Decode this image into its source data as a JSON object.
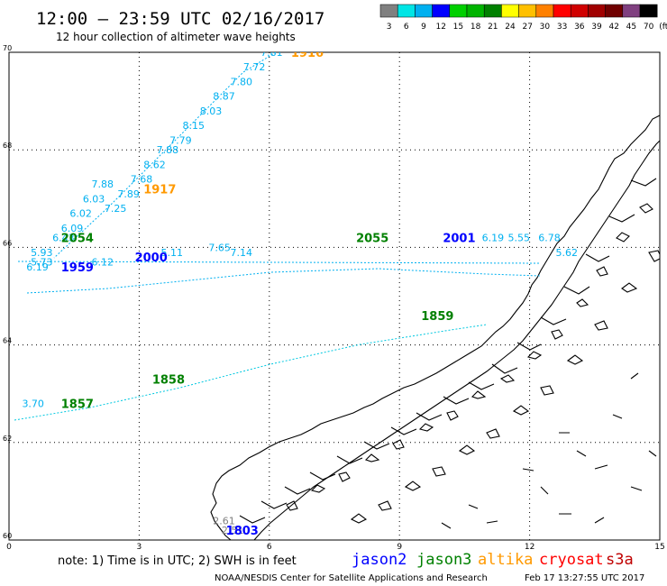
{
  "header": {
    "title": "12:00 – 23:59 UTC 02/16/2017",
    "subtitle": "12 hour collection of altimeter wave heights"
  },
  "legend": {
    "unit": "(ft)",
    "bins": [
      {
        "label": "3",
        "color": "#808080"
      },
      {
        "label": "6",
        "color": "#00e5e5"
      },
      {
        "label": "9",
        "color": "#00b0f0"
      },
      {
        "label": "12",
        "color": "#0000ff"
      },
      {
        "label": "15",
        "color": "#00d000"
      },
      {
        "label": "18",
        "color": "#00b400"
      },
      {
        "label": "21",
        "color": "#008000"
      },
      {
        "label": "24",
        "color": "#ffff00"
      },
      {
        "label": "27",
        "color": "#ffc000"
      },
      {
        "label": "30",
        "color": "#ff8000"
      },
      {
        "label": "33",
        "color": "#ff0000"
      },
      {
        "label": "36",
        "color": "#d00000"
      },
      {
        "label": "39",
        "color": "#a00000"
      },
      {
        "label": "42",
        "color": "#700000"
      },
      {
        "label": "45",
        "color": "#804080"
      },
      {
        "label": "70",
        "color": "#000000"
      }
    ]
  },
  "axes": {
    "lat_ticks": [
      "70",
      "68",
      "66",
      "64",
      "62",
      "60"
    ],
    "lon_ticks": [
      "0",
      "3",
      "6",
      "9",
      "12",
      "15"
    ]
  },
  "note": "note:  1) Time is in UTC;  2) SWH is in feet",
  "satellites": [
    {
      "name": "jason2",
      "color": "#0000ff"
    },
    {
      "name": "jason3",
      "color": "#008000"
    },
    {
      "name": "altika",
      "color": "#ff9900"
    },
    {
      "name": "cryosat",
      "color": "#ff0000"
    },
    {
      "name": "s3a",
      "color": "#c00000"
    }
  ],
  "credit": "NOAA/NESDIS Center for Satellite Applications and Research",
  "timestamp": "Feb 17  13:27:55 UTC 2017",
  "colors": {
    "swh_label": "#00b0f0",
    "swh_light": "#00e0e0",
    "grid": "#000000",
    "coast": "#000000"
  },
  "track_labels": [
    {
      "text": "1916",
      "sat": "altika",
      "lon": 6.5,
      "lat": 70.0
    },
    {
      "text": "1917",
      "sat": "altika",
      "lon": 3.1,
      "lat": 67.2
    },
    {
      "text": "2054",
      "sat": "jason3",
      "lon": 1.2,
      "lat": 66.2
    },
    {
      "text": "2055",
      "sat": "jason3",
      "lon": 8.0,
      "lat": 66.2
    },
    {
      "text": "2001",
      "sat": "jason2",
      "lon": 10.0,
      "lat": 66.2
    },
    {
      "text": "2000",
      "sat": "jason2",
      "lon": 2.9,
      "lat": 65.8
    },
    {
      "text": "1959",
      "sat": "jason2",
      "lon": 1.2,
      "lat": 65.6
    },
    {
      "text": "1859",
      "sat": "jason3",
      "lon": 9.5,
      "lat": 64.6
    },
    {
      "text": "1858",
      "sat": "jason3",
      "lon": 3.3,
      "lat": 63.3
    },
    {
      "text": "1857",
      "sat": "jason3",
      "lon": 1.2,
      "lat": 62.8
    },
    {
      "text": "1803",
      "sat": "jason2",
      "lon": 5.0,
      "lat": 60.2
    }
  ],
  "swh_values": [
    {
      "text": "7.81",
      "lon": 5.8,
      "lat": 70.0
    },
    {
      "text": "7.72",
      "lon": 5.4,
      "lat": 69.7
    },
    {
      "text": "7.80",
      "lon": 5.1,
      "lat": 69.4
    },
    {
      "text": "8.87",
      "lon": 4.7,
      "lat": 69.1
    },
    {
      "text": "8.03",
      "lon": 4.4,
      "lat": 68.8
    },
    {
      "text": "8.15",
      "lon": 4.0,
      "lat": 68.5
    },
    {
      "text": "7.79",
      "lon": 3.7,
      "lat": 68.2
    },
    {
      "text": "7.88",
      "lon": 3.4,
      "lat": 68.0
    },
    {
      "text": "8.62",
      "lon": 3.1,
      "lat": 67.7
    },
    {
      "text": "7.68",
      "lon": 2.8,
      "lat": 67.4
    },
    {
      "text": "7.89",
      "lon": 2.5,
      "lat": 67.1
    },
    {
      "text": "7.25",
      "lon": 2.2,
      "lat": 66.8
    },
    {
      "text": "7.88",
      "lon": 1.9,
      "lat": 67.3
    },
    {
      "text": "6.03",
      "lon": 1.7,
      "lat": 67.0
    },
    {
      "text": "6.02",
      "lon": 1.4,
      "lat": 66.7
    },
    {
      "text": "6.09",
      "lon": 1.2,
      "lat": 66.4
    },
    {
      "text": "6.43",
      "lon": 1.0,
      "lat": 66.2
    },
    {
      "text": "5.93",
      "lon": 0.5,
      "lat": 65.9
    },
    {
      "text": "5.73",
      "lon": 0.5,
      "lat": 65.7
    },
    {
      "text": "6.19",
      "lon": 0.4,
      "lat": 65.6
    },
    {
      "text": "6.12",
      "lon": 1.9,
      "lat": 65.7
    },
    {
      "text": "5.11",
      "lon": 3.5,
      "lat": 65.9
    },
    {
      "text": "7.65",
      "lon": 4.6,
      "lat": 66.0
    },
    {
      "text": "7.14",
      "lon": 5.1,
      "lat": 65.9
    },
    {
      "text": "6.19",
      "lon": 10.9,
      "lat": 66.2
    },
    {
      "text": "5.55",
      "lon": 11.5,
      "lat": 66.2
    },
    {
      "text": "6.78",
      "lon": 12.2,
      "lat": 66.2
    },
    {
      "text": "5.62",
      "lon": 12.6,
      "lat": 65.9
    },
    {
      "text": "2.51",
      "lon": 4.9,
      "lat": 60.2
    },
    {
      "text": "2.61",
      "lon": 4.7,
      "lat": 60.4
    },
    {
      "text": "3.70",
      "lon": 0.3,
      "lat": 62.8
    }
  ]
}
